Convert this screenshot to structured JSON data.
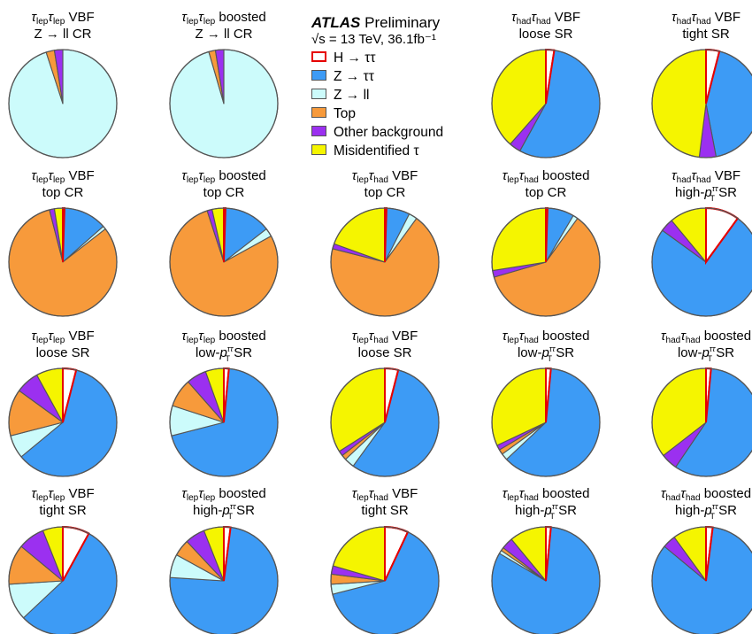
{
  "header": {
    "experiment": "ATLAS",
    "status": "Preliminary",
    "energy_lumi": "√s = 13 TeV, 36.1fb⁻¹"
  },
  "legend": [
    {
      "key": "htt",
      "label": "H → ττ",
      "color": "#ffffff",
      "edge": "#e60000"
    },
    {
      "key": "ztt",
      "label": "Z → ττ",
      "color": "#3d9bf5",
      "edge": "#555555"
    },
    {
      "key": "zll",
      "label": "Z → ll",
      "color": "#ccfbfb",
      "edge": "#555555"
    },
    {
      "key": "top",
      "label": "Top",
      "color": "#f79a3b",
      "edge": "#555555"
    },
    {
      "key": "other",
      "label": "Other background",
      "color": "#9b30f0",
      "edge": "#555555"
    },
    {
      "key": "fake",
      "label": "Misidentified τ",
      "color": "#f5f500",
      "edge": "#555555"
    }
  ],
  "chart_data": {
    "type": "pie",
    "series_order": [
      "H → ττ",
      "Z → ττ",
      "Z → ll",
      "Top",
      "Other background",
      "Misidentified τ"
    ],
    "charts": [
      {
        "row": 1,
        "col": 1,
        "channel": "τlepτlep",
        "category": "VBF",
        "region": "Z → ll CR",
        "values": [
          0,
          0,
          95,
          2.5,
          2.5,
          0
        ]
      },
      {
        "row": 1,
        "col": 2,
        "channel": "τlepτlep",
        "category": "boosted",
        "region": "Z → ll CR",
        "values": [
          0,
          0,
          95.5,
          2,
          2.5,
          0
        ]
      },
      {
        "row": 1,
        "col": 4,
        "channel": "τhadτhad",
        "category": "VBF",
        "region": "loose SR",
        "values": [
          2.5,
          55.5,
          0,
          0,
          3.5,
          38.5
        ]
      },
      {
        "row": 1,
        "col": 5,
        "channel": "τhadτhad",
        "category": "VBF",
        "region": "tight SR",
        "values": [
          4,
          43,
          0,
          0,
          5,
          48
        ]
      },
      {
        "row": 2,
        "col": 1,
        "channel": "τlepτlep",
        "category": "VBF",
        "region": "top CR",
        "values": [
          0.5,
          13,
          1,
          81.5,
          1.5,
          2.5
        ]
      },
      {
        "row": 2,
        "col": 2,
        "channel": "τlepτlep",
        "category": "boosted",
        "region": "top CR",
        "values": [
          0.5,
          14,
          2.5,
          78,
          1.5,
          3.5
        ]
      },
      {
        "row": 2,
        "col": 3,
        "channel": "τlepτhad",
        "category": "VBF",
        "region": "top CR",
        "values": [
          0.5,
          7,
          2.5,
          69,
          1.5,
          19.5
        ]
      },
      {
        "row": 2,
        "col": 4,
        "channel": "τlepτhad",
        "category": "boosted",
        "region": "top CR",
        "values": [
          0.5,
          8,
          1.5,
          60.5,
          2,
          27.5
        ]
      },
      {
        "row": 2,
        "col": 5,
        "channel": "τhadτhad",
        "category": "VBF",
        "region": "high-pTττ SR",
        "values": [
          10,
          75,
          0,
          0,
          4,
          11
        ]
      },
      {
        "row": 3,
        "col": 1,
        "channel": "τlepτlep",
        "category": "VBF",
        "region": "loose SR",
        "values": [
          4,
          60,
          7,
          14,
          7,
          8
        ]
      },
      {
        "row": 3,
        "col": 2,
        "channel": "τlepτlep",
        "category": "boosted",
        "region": "low-pTττ SR",
        "values": [
          1.5,
          69.5,
          9,
          8.5,
          6,
          5.5
        ]
      },
      {
        "row": 3,
        "col": 3,
        "channel": "τlepτhad",
        "category": "VBF",
        "region": "loose SR",
        "values": [
          4,
          56,
          3,
          1.5,
          1.5,
          34
        ]
      },
      {
        "row": 3,
        "col": 4,
        "channel": "τlepτhad",
        "category": "boosted",
        "region": "low-pTττ SR",
        "values": [
          1.5,
          61.5,
          2,
          1.5,
          1.5,
          32
        ]
      },
      {
        "row": 3,
        "col": 5,
        "channel": "τhadτhad",
        "category": "boosted",
        "region": "low-pTττ SR",
        "values": [
          1.5,
          58,
          0,
          0,
          5,
          35.5
        ]
      },
      {
        "row": 4,
        "col": 1,
        "channel": "τlepτlep",
        "category": "VBF",
        "region": "tight SR",
        "values": [
          8,
          55,
          11,
          12,
          8,
          6
        ]
      },
      {
        "row": 4,
        "col": 2,
        "channel": "τlepτlep",
        "category": "boosted",
        "region": "high-pTττ SR",
        "values": [
          2,
          74,
          7,
          5,
          6,
          6
        ]
      },
      {
        "row": 4,
        "col": 3,
        "channel": "τlepτhad",
        "category": "VBF",
        "region": "tight SR",
        "values": [
          7,
          64,
          3,
          3,
          2.5,
          20.5
        ]
      },
      {
        "row": 4,
        "col": 4,
        "channel": "τlepτhad",
        "category": "boosted",
        "region": "high-pTττ SR",
        "values": [
          1.5,
          82,
          1,
          1,
          3.5,
          11
        ]
      },
      {
        "row": 4,
        "col": 5,
        "channel": "τhadτhad",
        "category": "boosted",
        "region": "high-pTττ SR",
        "values": [
          2,
          84,
          0,
          0,
          4,
          10
        ]
      }
    ]
  }
}
